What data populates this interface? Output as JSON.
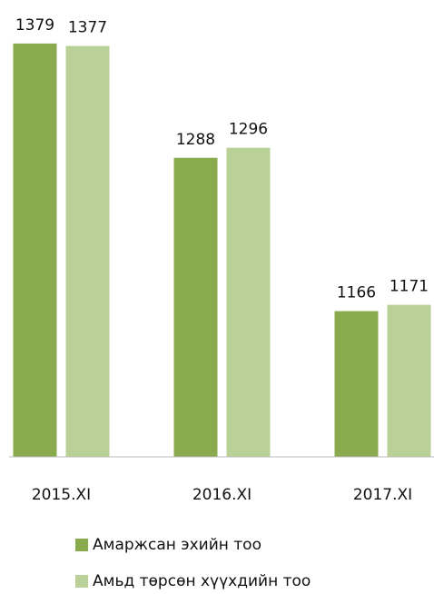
{
  "chart_data": {
    "type": "bar",
    "categories": [
      "2015.XI",
      "2016.XI",
      "2017.XI"
    ],
    "series": [
      {
        "name": "Амаржсан эхийн тоо",
        "color": "#8aaa4e",
        "values": [
          1379,
          1288,
          1166
        ]
      },
      {
        "name": "Амьд төрсөн хүүхдийн тоо",
        "color": "#b9d196",
        "values": [
          1377,
          1296,
          1171
        ]
      }
    ],
    "ylim": [
      1050,
      1410
    ]
  }
}
